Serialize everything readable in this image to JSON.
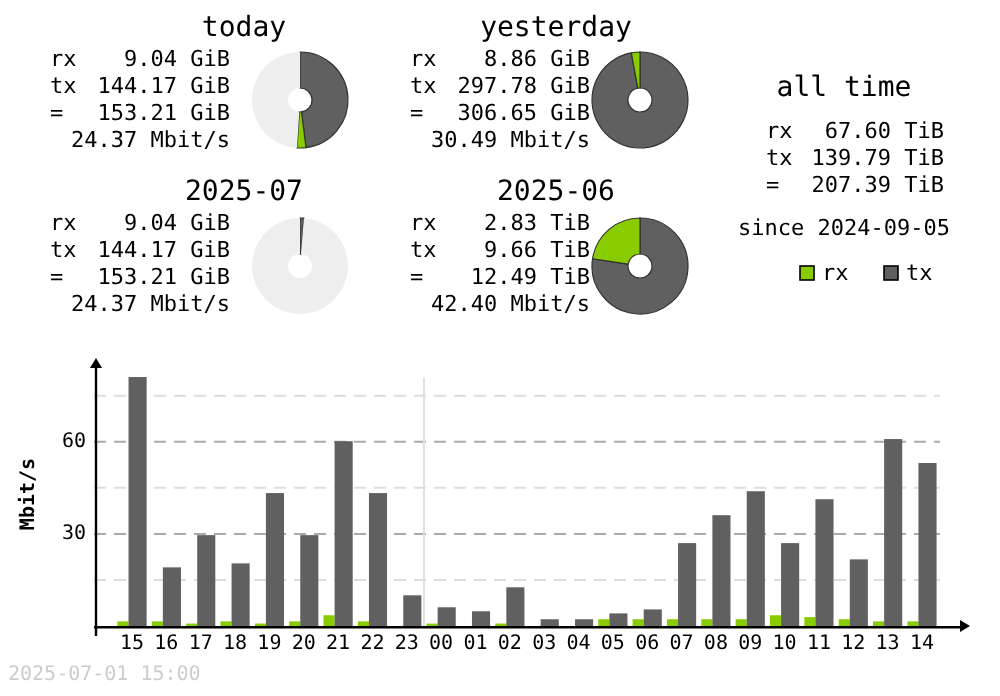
{
  "chart_data": [
    {
      "type": "donut",
      "title": "today",
      "annotations": [
        "rx 9.04 GiB",
        "tx 144.17 GiB",
        "= 153.21 GiB",
        "24.37 Mbit/s"
      ],
      "categories": [
        null,
        null,
        null
      ],
      "values": [
        48,
        3,
        49
      ],
      "colors": [
        "#606060",
        "#88cc00",
        "#eeeeee"
      ]
    },
    {
      "type": "donut",
      "title": "yesterday",
      "annotations": [
        "rx 8.86 GiB",
        "tx 297.78 GiB",
        "= 306.65 GiB",
        "30.49 Mbit/s"
      ],
      "categories": [
        null,
        null
      ],
      "values": [
        97.1,
        2.9
      ],
      "colors": [
        "#606060",
        "#88cc00"
      ]
    },
    {
      "type": "other",
      "title": "all time",
      "annotations": [
        "rx 67.60 TiB",
        "tx 139.79 TiB",
        "= 207.39 TiB",
        "since 2024-09-05"
      ]
    },
    {
      "type": "donut",
      "title": "2025-07",
      "annotations": [
        "rx 9.04 GiB",
        "tx 144.17 GiB",
        "= 153.21 GiB",
        "24.37 Mbit/s"
      ],
      "categories": [
        null,
        null
      ],
      "values": [
        1.3,
        98.7
      ],
      "colors": [
        "#606060",
        "#eeeeee"
      ]
    },
    {
      "type": "donut",
      "title": "2025-06",
      "annotations": [
        "rx 2.83 TiB",
        "tx 9.66 TiB",
        "= 12.49 TiB",
        "42.40 Mbit/s"
      ],
      "categories": [
        null,
        null
      ],
      "values": [
        77.4,
        22.6
      ],
      "colors": [
        "#606060",
        "#88cc00"
      ]
    },
    {
      "type": "bar",
      "ylabel": "Mbit/s",
      "annotations": [
        "2025-07-01 15:00"
      ],
      "categories": [
        "15",
        "16",
        "17",
        "18",
        "19",
        "20",
        "21",
        "22",
        "23",
        "00",
        "01",
        "02",
        "03",
        "04",
        "05",
        "06",
        "07",
        "08",
        "09",
        "10",
        "11",
        "12",
        "13",
        "14"
      ],
      "series": [
        {
          "name": "rx",
          "color": "#88cc00",
          "values": [
            1.5,
            1.5,
            0.8,
            1.5,
            0.8,
            1.5,
            3.5,
            1.5,
            0,
            0.8,
            0,
            0.8,
            0,
            0,
            2.2,
            2.2,
            2.2,
            2.2,
            2.2,
            3.5,
            2.9,
            2.2,
            1.5,
            1.5
          ]
        },
        {
          "name": "tx",
          "color": "#606060",
          "values": [
            81.1,
            19.1,
            29.6,
            20.4,
            43.3,
            29.6,
            60.2,
            43.3,
            10.0,
            6.1,
            4.8,
            12.6,
            2.2,
            2.2,
            4.1,
            5.4,
            27.0,
            36.1,
            43.9,
            27.0,
            41.3,
            21.7,
            60.9,
            53.1
          ]
        }
      ],
      "ylim": [
        0,
        86
      ],
      "yticks": [
        {
          "value": 15,
          "label": null
        },
        30,
        {
          "value": 45,
          "label": null
        },
        60,
        {
          "value": 75,
          "label": null
        }
      ],
      "grid": "y",
      "legend": "top right",
      "ref_lines": [
        {
          "axis": "x",
          "value": "00",
          "color": "#e0e0e0"
        }
      ]
    }
  ]
}
